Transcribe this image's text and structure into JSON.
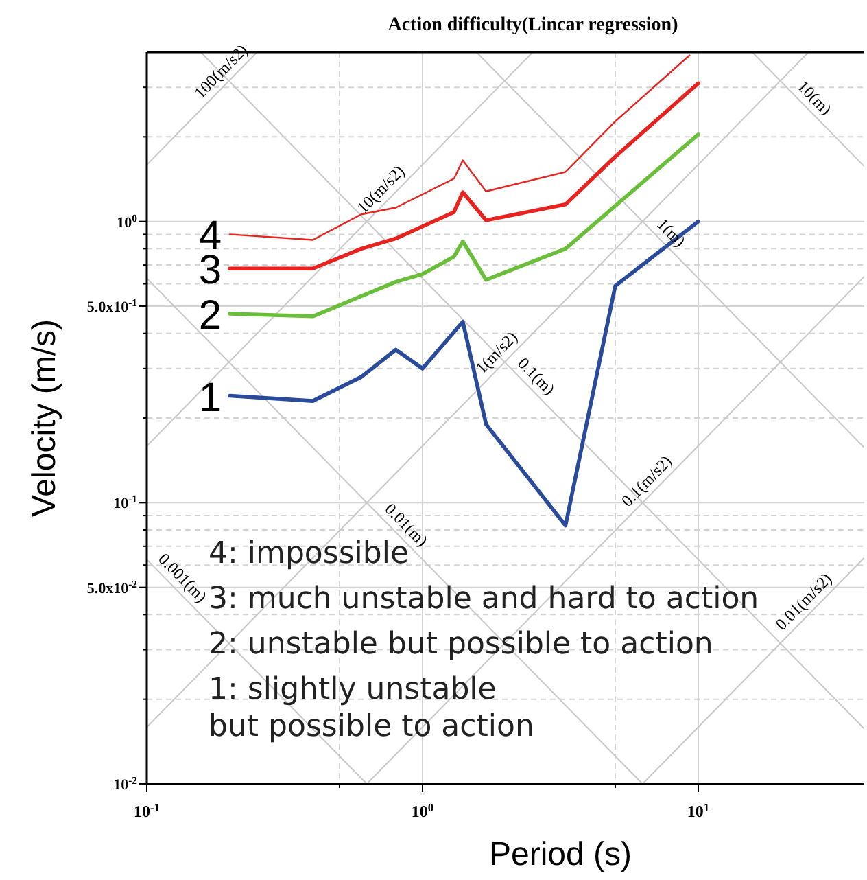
{
  "chart_data": {
    "type": "line",
    "title": "Action difficulty(Lincar regression)",
    "xlabel": "Period (s)",
    "ylabel": "Velocity (m/s)",
    "log": "xy",
    "grid": true,
    "xlim": [
      0.1,
      40
    ],
    "ylim": [
      0.01,
      4
    ],
    "xticks": [
      {
        "value": 0.1,
        "label": "10$^{-1}$"
      },
      {
        "value": 0.5,
        "label": null
      },
      {
        "value": 1,
        "label": "10$^{0}$"
      },
      {
        "value": 5,
        "label": null
      },
      {
        "value": 10,
        "label": "10$^{1}$"
      }
    ],
    "yticks": [
      {
        "value": 0.01,
        "label": "10$^{-2}$"
      },
      {
        "value": 0.02,
        "label": null
      },
      {
        "value": 0.03,
        "label": null
      },
      {
        "value": 0.04,
        "label": null
      },
      {
        "value": 0.05,
        "label": "5.0x10$^{-2}$"
      },
      {
        "value": 0.06,
        "label": null
      },
      {
        "value": 0.07,
        "label": null
      },
      {
        "value": 0.08,
        "label": null
      },
      {
        "value": 0.09,
        "label": null
      },
      {
        "value": 0.1,
        "label": "10$^{-1}$"
      },
      {
        "value": 0.2,
        "label": null
      },
      {
        "value": 0.3,
        "label": null
      },
      {
        "value": 0.4,
        "label": null
      },
      {
        "value": 0.5,
        "label": "5.0x10$^{-1}$"
      },
      {
        "value": 0.6,
        "label": null
      },
      {
        "value": 0.7,
        "label": null
      },
      {
        "value": 0.8,
        "label": null
      },
      {
        "value": 0.9,
        "label": null
      },
      {
        "value": 1,
        "label": "10$^{0}$"
      },
      {
        "value": 2,
        "label": null
      },
      {
        "value": 3,
        "label": null
      }
    ],
    "series": [
      {
        "color": "#c8c8c8",
        "x": [
          0.1,
          0.628
        ],
        "values": [
          0.0628,
          0.01
        ]
      },
      {
        "color": "#c8c8c8",
        "x": [
          0.1,
          6.28
        ],
        "values": [
          0.628,
          0.01
        ]
      },
      {
        "color": "#c8c8c8",
        "x": [
          0.157,
          40
        ],
        "values": [
          4,
          0.0157
        ]
      },
      {
        "color": "#c8c8c8",
        "x": [
          1.57,
          40
        ],
        "values": [
          4,
          0.157
        ]
      },
      {
        "color": "#c8c8c8",
        "x": [
          15.7,
          40
        ],
        "values": [
          4,
          1.57
        ]
      },
      {
        "color": "#c8c8c8",
        "x": [
          6.28,
          40
        ],
        "values": [
          0.01,
          0.0637
        ]
      },
      {
        "color": "#c8c8c8",
        "x": [
          0.628,
          40
        ],
        "values": [
          0.01,
          0.637
        ]
      },
      {
        "color": "#c8c8c8",
        "x": [
          0.1,
          25.1
        ],
        "values": [
          0.0159,
          4
        ]
      },
      {
        "color": "#c8c8c8",
        "x": [
          0.1,
          2.51
        ],
        "values": [
          0.159,
          4
        ]
      },
      {
        "color": "#c8c8c8",
        "x": [
          0.1,
          0.251
        ],
        "values": [
          1.59,
          4
        ]
      },
      {
        "name": "1",
        "color": "#2a4b9b",
        "x": [
          0.2,
          0.4,
          0.6,
          0.8,
          1.0,
          1.4,
          1.7,
          3.3,
          5,
          10
        ],
        "values": [
          0.24,
          0.23,
          0.28,
          0.35,
          0.3,
          0.44,
          0.19,
          0.083,
          0.59,
          1.0
        ]
      },
      {
        "name": "2",
        "color": "#6abf3a",
        "x": [
          0.2,
          0.4,
          0.8,
          1.0,
          1.3,
          1.4,
          1.7,
          3.3,
          10
        ],
        "values": [
          0.47,
          0.46,
          0.61,
          0.65,
          0.75,
          0.85,
          0.62,
          0.8,
          2.04
        ]
      },
      {
        "name": "3",
        "color": "#e8231f",
        "x": [
          0.2,
          0.4,
          0.6,
          0.8,
          1.3,
          1.4,
          1.7,
          3.3,
          5,
          10
        ],
        "values": [
          0.68,
          0.68,
          0.8,
          0.87,
          1.08,
          1.27,
          1.01,
          1.15,
          1.7,
          3.1
        ]
      },
      {
        "name": "4",
        "color": "#e8231f",
        "x": [
          0.2,
          0.4,
          0.6,
          0.8,
          1.3,
          1.4,
          1.7,
          3.3,
          5,
          9.3
        ],
        "values": [
          0.9,
          0.86,
          1.06,
          1.12,
          1.42,
          1.65,
          1.28,
          1.5,
          2.27,
          3.9
        ]
      }
    ],
    "annotations": [
      {
        "text": "10(m)",
        "x": 24.5,
        "y": 2.56
      },
      {
        "text": "1(m)",
        "x": 7.4,
        "y": 0.849
      },
      {
        "text": "0.1(m)",
        "x": 2.4,
        "y": 0.262
      },
      {
        "text": "0.01(m)",
        "x": 0.81,
        "y": 0.0776
      },
      {
        "text": "0.001(m)",
        "x": 0.125,
        "y": 0.0503
      },
      {
        "text": "100(m/s2)",
        "x": 0.2,
        "y": 3.18
      },
      {
        "text": "10(m/s2)",
        "x": 0.76,
        "y": 1.21
      },
      {
        "text": "1(m/s2)",
        "x": 2.0,
        "y": 0.318
      },
      {
        "text": "0.1(m/s2)",
        "x": 7.0,
        "y": 0.111
      },
      {
        "text": "0.01(m/s2)",
        "x": 26,
        "y": 0.0414
      },
      "4: impossible",
      "3: much unstable and hard to action",
      "2: unstable but possible to action",
      "1: slightly unstable\nbut possible to action"
    ]
  }
}
